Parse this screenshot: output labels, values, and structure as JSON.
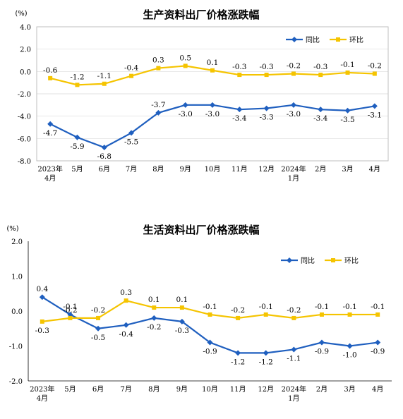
{
  "chart_data": [
    {
      "type": "line",
      "title": "生产资料出厂价格涨跌幅",
      "unit": "(%)",
      "categories": [
        [
          "2023年",
          "4月"
        ],
        [
          "5月"
        ],
        [
          "6月"
        ],
        [
          "7月"
        ],
        [
          "8月"
        ],
        [
          "9月"
        ],
        [
          "10月"
        ],
        [
          "11月"
        ],
        [
          "12月"
        ],
        [
          "2024年",
          "1月"
        ],
        [
          "2月"
        ],
        [
          "3月"
        ],
        [
          "4月"
        ]
      ],
      "ylim": [
        -8.0,
        4.0
      ],
      "yticks": [
        "4.0",
        "2.0",
        "0.0",
        "-2.0",
        "-4.0",
        "-6.0",
        "-8.0"
      ],
      "ytick_values": [
        4,
        2,
        0,
        -2,
        -4,
        -6,
        -8
      ],
      "series": [
        {
          "name": "同比",
          "color": "#1f5fbf",
          "marker": "diamond",
          "values": [
            -4.7,
            -5.9,
            -6.8,
            -5.5,
            -3.7,
            -3.0,
            -3.0,
            -3.4,
            -3.3,
            -3.0,
            -3.4,
            -3.5,
            -3.1
          ],
          "labels": [
            "-4.7",
            "-5.9",
            "-6.8",
            "-5.5",
            "-3.7",
            "-3.0",
            "-3.0",
            "-3.4",
            "-3.3",
            "-3.0",
            "-3.4",
            "-3.5",
            "-3.1"
          ]
        },
        {
          "name": "环比",
          "color": "#f5c400",
          "marker": "square",
          "values": [
            -0.6,
            -1.2,
            -1.1,
            -0.4,
            0.3,
            0.5,
            0.1,
            -0.3,
            -0.3,
            -0.2,
            -0.3,
            -0.1,
            -0.2
          ],
          "labels": [
            "-0.6",
            "-1.2",
            "-1.1",
            "-0.4",
            "0.3",
            "0.5",
            "0.1",
            "-0.3",
            "-0.3",
            "-0.2",
            "-0.3",
            "-0.1",
            "-0.2"
          ]
        }
      ],
      "legend": "top-right",
      "grid": true
    },
    {
      "type": "line",
      "title": "生活资料出厂价格涨跌幅",
      "unit": "(%)",
      "categories": [
        [
          "2023年",
          "4月"
        ],
        [
          "5月"
        ],
        [
          "6月"
        ],
        [
          "7月"
        ],
        [
          "8月"
        ],
        [
          "9月"
        ],
        [
          "10月"
        ],
        [
          "11月"
        ],
        [
          "12月"
        ],
        [
          "2024年",
          "1月"
        ],
        [
          "2月"
        ],
        [
          "3月"
        ],
        [
          "4月"
        ]
      ],
      "ylim": [
        -2.0,
        2.0
      ],
      "yticks": [
        "2.0",
        "1.0",
        "0.0",
        "-1.0",
        "-2.0"
      ],
      "ytick_values": [
        2,
        1,
        0,
        -1,
        -2
      ],
      "series": [
        {
          "name": "同比",
          "color": "#1f5fbf",
          "marker": "diamond",
          "values": [
            0.4,
            -0.1,
            -0.5,
            -0.4,
            -0.2,
            -0.3,
            -0.9,
            -1.2,
            -1.2,
            -1.1,
            -0.9,
            -1.0,
            -0.9
          ],
          "labels": [
            "0.4",
            "-0.1",
            "-0.5",
            "-0.4",
            "-0.2",
            "-0.3",
            "-0.9",
            "-1.2",
            "-1.2",
            "-1.1",
            "-0.9",
            "-1.0",
            "-0.9"
          ]
        },
        {
          "name": "环比",
          "color": "#f5c400",
          "marker": "square",
          "values": [
            -0.3,
            -0.2,
            -0.2,
            0.3,
            0.1,
            0.1,
            -0.1,
            -0.2,
            -0.1,
            -0.2,
            -0.1,
            -0.1,
            -0.1
          ],
          "labels": [
            "-0.3",
            "-0.2",
            "-0.2",
            "0.3",
            "0.1",
            "0.1",
            "-0.1",
            "-0.2",
            "-0.1",
            "-0.2",
            "-0.1",
            "-0.1",
            "-0.1"
          ]
        }
      ],
      "legend": "top-right",
      "grid": false
    }
  ]
}
